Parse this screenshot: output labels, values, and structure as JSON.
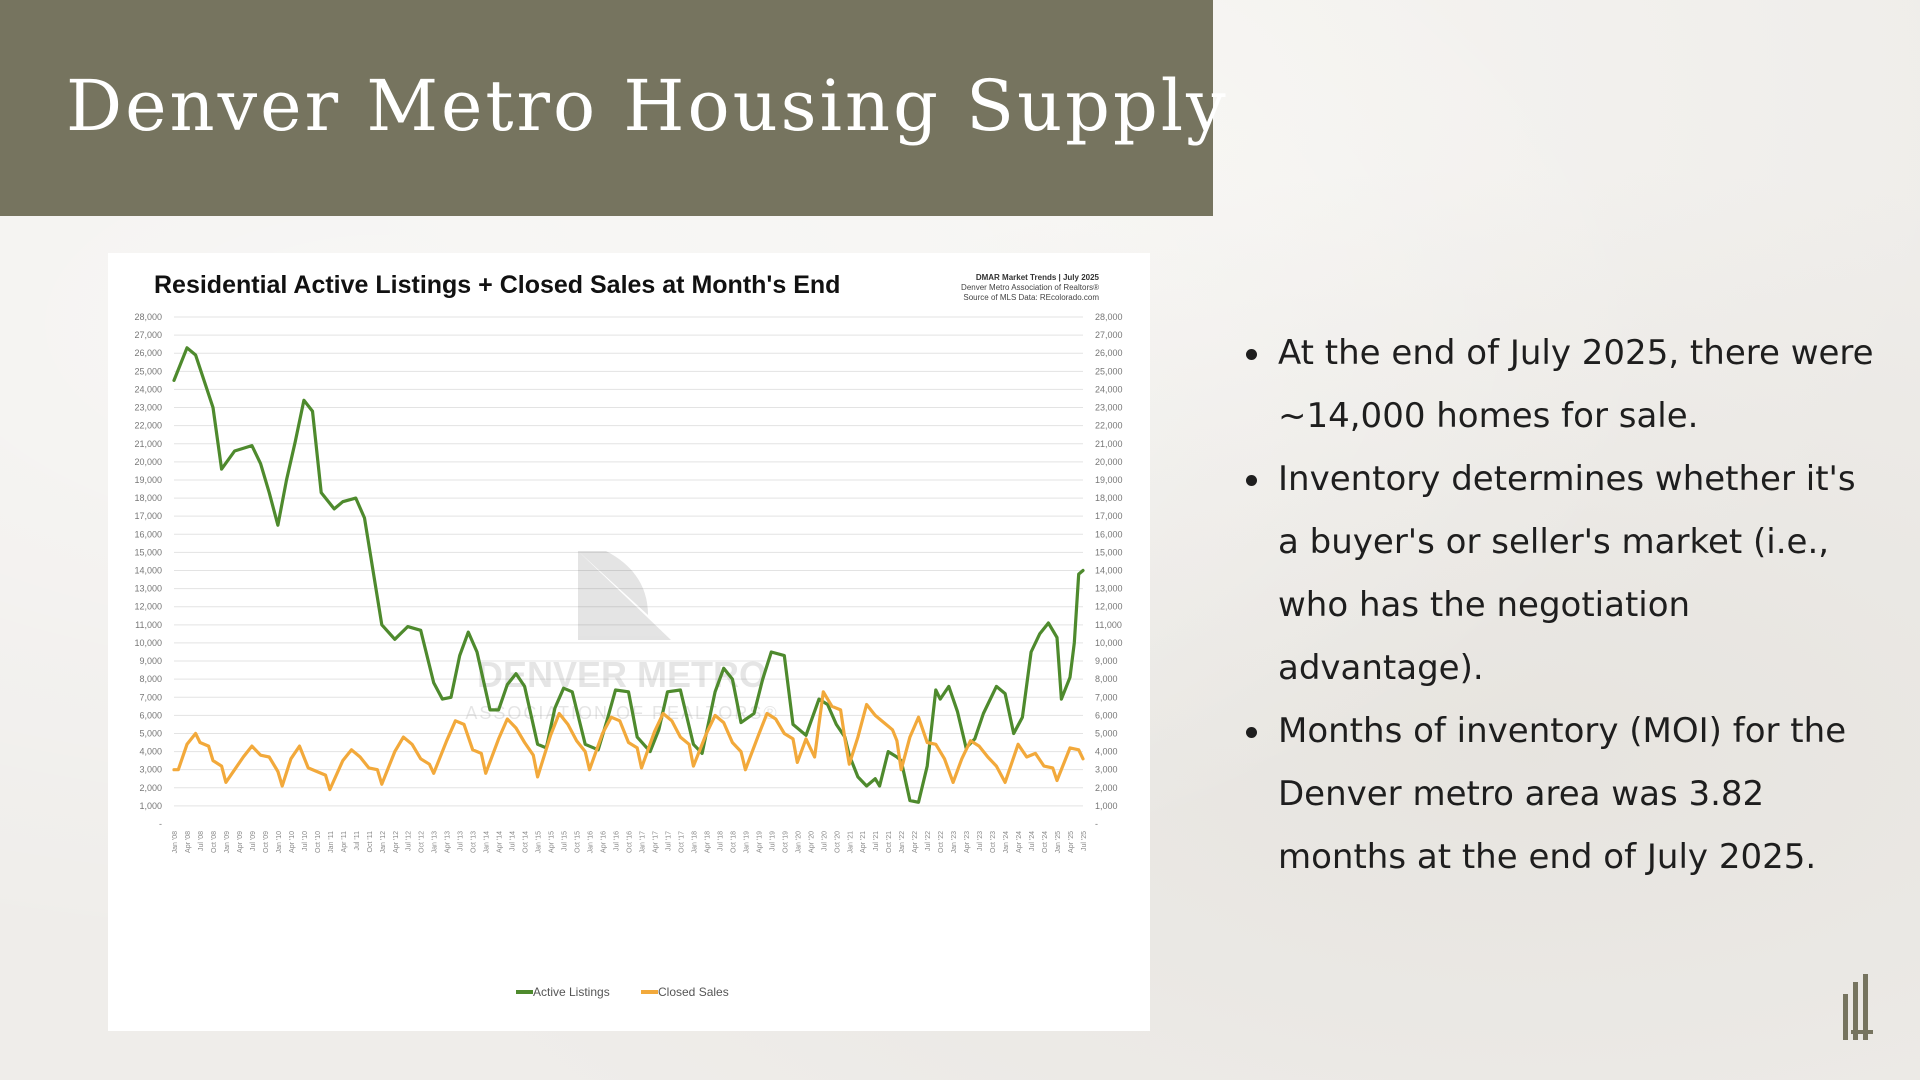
{
  "slide": {
    "title": "Denver Metro Housing Supply",
    "bullets": [
      "At the end of July 2025, there were ~14,000 homes for sale.",
      "Inventory determines whether it's a buyer's or seller's market (i.e., who has the negotiation advantage).",
      "Months of inventory (MOI) for the Denver metro area was 3.82 months at the end of July 2025."
    ]
  },
  "colors": {
    "title_band": "#76745f",
    "active_listings": "#4e8a2d",
    "closed_sales": "#f2a93b",
    "grid": "#e3e3e3"
  },
  "chart_data": {
    "type": "line",
    "title": "Residential Active Listings + Closed Sales at Month's End",
    "source_lines": [
      "DMAR Market Trends | July 2025",
      "Denver Metro Association of Realtors®",
      "Source of MLS Data: REcolorado.com"
    ],
    "watermark": [
      "DENVER METRO",
      "ASSOCIATION OF REALTORS®"
    ],
    "ylim": [
      0,
      28000
    ],
    "y_ticks": [
      "-",
      "1,000",
      "2,000",
      "3,000",
      "4,000",
      "5,000",
      "6,000",
      "7,000",
      "8,000",
      "9,000",
      "10,000",
      "11,000",
      "12,000",
      "13,000",
      "14,000",
      "15,000",
      "16,000",
      "17,000",
      "18,000",
      "19,000",
      "20,000",
      "21,000",
      "22,000",
      "23,000",
      "24,000",
      "25,000",
      "26,000",
      "27,000",
      "28,000"
    ],
    "x_start": "2008-01",
    "x_end": "2025-07",
    "x_ticks": [
      "Jan '08",
      "Apr '08",
      "Jul '08",
      "Oct '08",
      "Jan '09",
      "Apr '09",
      "Jul '09",
      "Oct '09",
      "Jan '10",
      "Apr '10",
      "Jul '10",
      "Oct '10",
      "Jan '11",
      "Apr '11",
      "Jul '11",
      "Oct '11",
      "Jan '12",
      "Apr '12",
      "Jul '12",
      "Oct '12",
      "Jan '13",
      "Apr '13",
      "Jul '13",
      "Oct '13",
      "Jan '14",
      "Apr '14",
      "Jul '14",
      "Oct '14",
      "Jan '15",
      "Apr '15",
      "Jul '15",
      "Oct '15",
      "Jan '16",
      "Apr '16",
      "Jul '16",
      "Oct '16",
      "Jan '17",
      "Apr '17",
      "Jul '17",
      "Oct '17",
      "Jan '18",
      "Apr '18",
      "Jul '18",
      "Oct '18",
      "Jan '19",
      "Apr '19",
      "Jul '19",
      "Oct '19",
      "Jan '20",
      "Apr '20",
      "Jul '20",
      "Oct '20",
      "Jan '21",
      "Apr '21",
      "Jul '21",
      "Oct '21",
      "Jan '22",
      "Apr '22",
      "Jul '22",
      "Oct '22",
      "Jan '23",
      "Apr '23",
      "Jul '23",
      "Oct '23",
      "Jan '24",
      "Apr '24",
      "Jul '24",
      "Oct '24",
      "Jan '25",
      "Apr '25",
      "Jul '25"
    ],
    "series": [
      {
        "name": "Active Listings",
        "color": "#4e8a2d",
        "points": [
          [
            "2008-01",
            24500
          ],
          [
            "2008-04",
            26300
          ],
          [
            "2008-06",
            25900
          ],
          [
            "2008-10",
            23000
          ],
          [
            "2008-12",
            19600
          ],
          [
            "2009-03",
            20600
          ],
          [
            "2009-07",
            20900
          ],
          [
            "2009-09",
            19900
          ],
          [
            "2009-11",
            18300
          ],
          [
            "2010-01",
            16500
          ],
          [
            "2010-03",
            19000
          ],
          [
            "2010-05",
            21100
          ],
          [
            "2010-07",
            23400
          ],
          [
            "2010-09",
            22800
          ],
          [
            "2010-11",
            18300
          ],
          [
            "2011-02",
            17400
          ],
          [
            "2011-04",
            17800
          ],
          [
            "2011-07",
            18000
          ],
          [
            "2011-09",
            16900
          ],
          [
            "2012-01",
            11000
          ],
          [
            "2012-04",
            10200
          ],
          [
            "2012-07",
            10900
          ],
          [
            "2012-10",
            10700
          ],
          [
            "2013-01",
            7800
          ],
          [
            "2013-03",
            6900
          ],
          [
            "2013-05",
            7000
          ],
          [
            "2013-07",
            9300
          ],
          [
            "2013-09",
            10600
          ],
          [
            "2013-11",
            9500
          ],
          [
            "2014-02",
            6300
          ],
          [
            "2014-04",
            6300
          ],
          [
            "2014-06",
            7700
          ],
          [
            "2014-08",
            8300
          ],
          [
            "2014-10",
            7600
          ],
          [
            "2015-01",
            4400
          ],
          [
            "2015-03",
            4200
          ],
          [
            "2015-05",
            6400
          ],
          [
            "2015-07",
            7500
          ],
          [
            "2015-09",
            7300
          ],
          [
            "2015-12",
            4400
          ],
          [
            "2016-03",
            4100
          ],
          [
            "2016-05",
            5700
          ],
          [
            "2016-07",
            7400
          ],
          [
            "2016-10",
            7300
          ],
          [
            "2016-12",
            4800
          ],
          [
            "2017-03",
            4000
          ],
          [
            "2017-05",
            5200
          ],
          [
            "2017-07",
            7300
          ],
          [
            "2017-10",
            7400
          ],
          [
            "2018-01",
            4400
          ],
          [
            "2018-03",
            3900
          ],
          [
            "2018-06",
            7300
          ],
          [
            "2018-08",
            8600
          ],
          [
            "2018-10",
            8000
          ],
          [
            "2018-12",
            5600
          ],
          [
            "2019-03",
            6100
          ],
          [
            "2019-05",
            8000
          ],
          [
            "2019-07",
            9500
          ],
          [
            "2019-10",
            9300
          ],
          [
            "2019-12",
            5500
          ],
          [
            "2020-03",
            4900
          ],
          [
            "2020-06",
            6900
          ],
          [
            "2020-08",
            6600
          ],
          [
            "2020-10",
            5500
          ],
          [
            "2020-12",
            4800
          ],
          [
            "2021-01",
            3800
          ],
          [
            "2021-03",
            2600
          ],
          [
            "2021-05",
            2100
          ],
          [
            "2021-07",
            2500
          ],
          [
            "2021-08",
            2100
          ],
          [
            "2021-10",
            4000
          ],
          [
            "2021-12",
            3700
          ],
          [
            "2022-01",
            3500
          ],
          [
            "2022-03",
            1300
          ],
          [
            "2022-05",
            1200
          ],
          [
            "2022-07",
            3200
          ],
          [
            "2022-09",
            7400
          ],
          [
            "2022-10",
            6900
          ],
          [
            "2022-12",
            7600
          ],
          [
            "2023-02",
            6200
          ],
          [
            "2023-04",
            4200
          ],
          [
            "2023-06",
            4700
          ],
          [
            "2023-08",
            6100
          ],
          [
            "2023-11",
            7600
          ],
          [
            "2024-01",
            7200
          ],
          [
            "2024-03",
            5000
          ],
          [
            "2024-05",
            5900
          ],
          [
            "2024-07",
            9500
          ],
          [
            "2024-09",
            10500
          ],
          [
            "2024-11",
            11100
          ],
          [
            "2025-01",
            10300
          ],
          [
            "2025-02",
            6900
          ],
          [
            "2025-04",
            8100
          ],
          [
            "2025-05",
            10000
          ],
          [
            "2025-06",
            13800
          ],
          [
            "2025-07",
            14000
          ]
        ]
      },
      {
        "name": "Closed Sales",
        "color": "#f2a93b",
        "points": [
          [
            "2008-01",
            3000
          ],
          [
            "2008-02",
            3000
          ],
          [
            "2008-04",
            4400
          ],
          [
            "2008-06",
            5000
          ],
          [
            "2008-07",
            4500
          ],
          [
            "2008-09",
            4300
          ],
          [
            "2008-10",
            3500
          ],
          [
            "2008-12",
            3200
          ],
          [
            "2009-01",
            2300
          ],
          [
            "2009-03",
            3000
          ],
          [
            "2009-05",
            3700
          ],
          [
            "2009-07",
            4300
          ],
          [
            "2009-09",
            3800
          ],
          [
            "2009-11",
            3700
          ],
          [
            "2010-01",
            2900
          ],
          [
            "2010-02",
            2100
          ],
          [
            "2010-04",
            3600
          ],
          [
            "2010-06",
            4300
          ],
          [
            "2010-08",
            3100
          ],
          [
            "2010-10",
            2900
          ],
          [
            "2010-12",
            2700
          ],
          [
            "2011-01",
            1900
          ],
          [
            "2011-04",
            3500
          ],
          [
            "2011-06",
            4100
          ],
          [
            "2011-08",
            3700
          ],
          [
            "2011-10",
            3100
          ],
          [
            "2011-12",
            3000
          ],
          [
            "2012-01",
            2200
          ],
          [
            "2012-04",
            4000
          ],
          [
            "2012-06",
            4800
          ],
          [
            "2012-08",
            4400
          ],
          [
            "2012-10",
            3600
          ],
          [
            "2012-12",
            3300
          ],
          [
            "2013-01",
            2800
          ],
          [
            "2013-04",
            4600
          ],
          [
            "2013-06",
            5700
          ],
          [
            "2013-08",
            5500
          ],
          [
            "2013-10",
            4100
          ],
          [
            "2013-12",
            3900
          ],
          [
            "2014-01",
            2800
          ],
          [
            "2014-04",
            4700
          ],
          [
            "2014-06",
            5800
          ],
          [
            "2014-08",
            5300
          ],
          [
            "2014-10",
            4500
          ],
          [
            "2014-12",
            3800
          ],
          [
            "2015-01",
            2600
          ],
          [
            "2015-04",
            4900
          ],
          [
            "2015-06",
            6100
          ],
          [
            "2015-08",
            5500
          ],
          [
            "2015-10",
            4600
          ],
          [
            "2015-12",
            4000
          ],
          [
            "2016-01",
            3000
          ],
          [
            "2016-04",
            5000
          ],
          [
            "2016-06",
            5900
          ],
          [
            "2016-08",
            5700
          ],
          [
            "2016-10",
            4500
          ],
          [
            "2016-12",
            4200
          ],
          [
            "2017-01",
            3100
          ],
          [
            "2017-04",
            5100
          ],
          [
            "2017-06",
            6100
          ],
          [
            "2017-08",
            5700
          ],
          [
            "2017-10",
            4800
          ],
          [
            "2017-12",
            4400
          ],
          [
            "2018-01",
            3200
          ],
          [
            "2018-04",
            5000
          ],
          [
            "2018-06",
            6000
          ],
          [
            "2018-08",
            5600
          ],
          [
            "2018-10",
            4500
          ],
          [
            "2018-12",
            4000
          ],
          [
            "2019-01",
            3000
          ],
          [
            "2019-04",
            4900
          ],
          [
            "2019-06",
            6100
          ],
          [
            "2019-08",
            5800
          ],
          [
            "2019-10",
            5000
          ],
          [
            "2019-12",
            4700
          ],
          [
            "2020-01",
            3400
          ],
          [
            "2020-03",
            4700
          ],
          [
            "2020-05",
            3700
          ],
          [
            "2020-07",
            7300
          ],
          [
            "2020-09",
            6500
          ],
          [
            "2020-11",
            6300
          ],
          [
            "2020-12",
            4700
          ],
          [
            "2021-01",
            3300
          ],
          [
            "2021-03",
            4800
          ],
          [
            "2021-05",
            6600
          ],
          [
            "2021-07",
            6000
          ],
          [
            "2021-09",
            5600
          ],
          [
            "2021-11",
            5200
          ],
          [
            "2021-12",
            4600
          ],
          [
            "2022-01",
            3000
          ],
          [
            "2022-03",
            4800
          ],
          [
            "2022-05",
            5900
          ],
          [
            "2022-07",
            4500
          ],
          [
            "2022-09",
            4400
          ],
          [
            "2022-11",
            3600
          ],
          [
            "2023-01",
            2300
          ],
          [
            "2023-03",
            3600
          ],
          [
            "2023-05",
            4600
          ],
          [
            "2023-07",
            4300
          ],
          [
            "2023-09",
            3700
          ],
          [
            "2023-11",
            3200
          ],
          [
            "2024-01",
            2300
          ],
          [
            "2024-04",
            4400
          ],
          [
            "2024-06",
            3700
          ],
          [
            "2024-08",
            3900
          ],
          [
            "2024-10",
            3200
          ],
          [
            "2024-12",
            3100
          ],
          [
            "2025-01",
            2400
          ],
          [
            "2025-04",
            4200
          ],
          [
            "2025-06",
            4100
          ],
          [
            "2025-07",
            3600
          ]
        ]
      }
    ],
    "legend_position": "bottom-center",
    "grid": true
  }
}
